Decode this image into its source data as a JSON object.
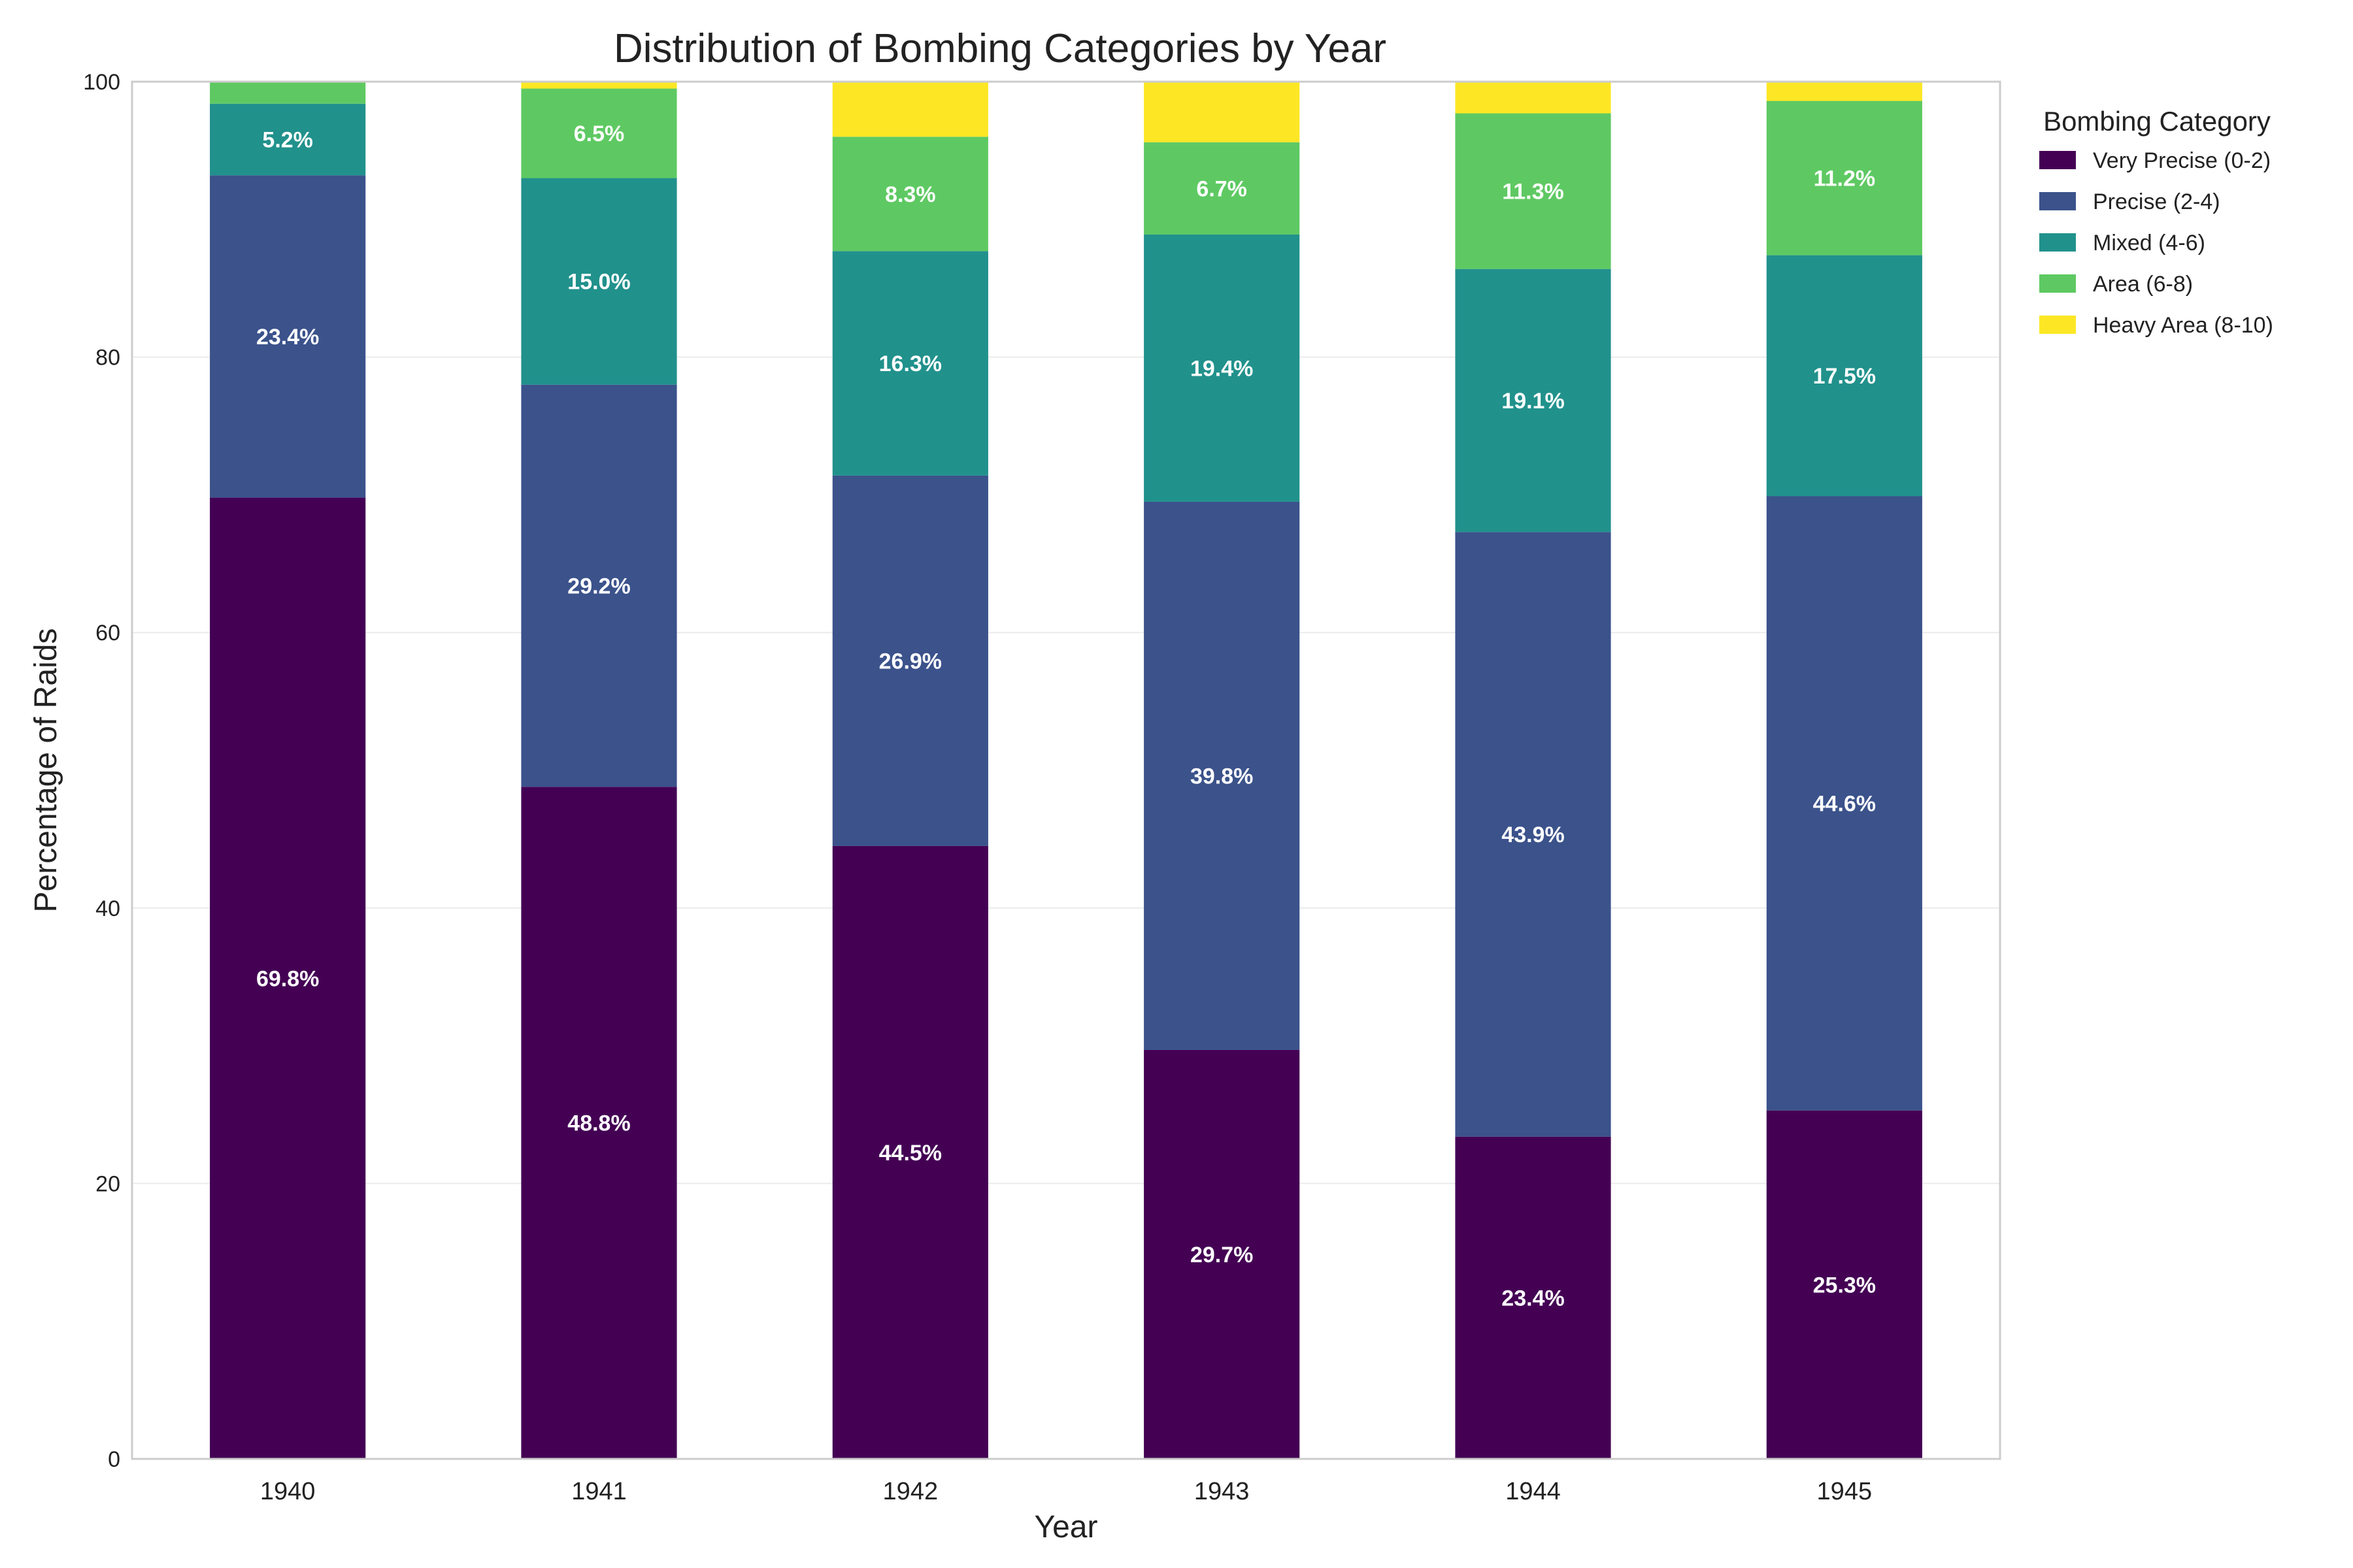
{
  "chart_data": {
    "type": "bar",
    "stacked": true,
    "title": "Distribution of Bombing Categories by Year",
    "xlabel": "Year",
    "ylabel": "Percentage of Raids",
    "ylim": [
      0,
      100
    ],
    "yticks": [
      0,
      20,
      40,
      60,
      80,
      100
    ],
    "grid": true,
    "legend_title": "Bombing Category",
    "legend_position": "outside-right",
    "categories": [
      "1940",
      "1941",
      "1942",
      "1943",
      "1944",
      "1945"
    ],
    "series": [
      {
        "name": "Very Precise (0-2)",
        "color": "#440154",
        "values": [
          69.8,
          48.8,
          44.5,
          29.7,
          23.4,
          25.3
        ]
      },
      {
        "name": "Precise (2-4)",
        "color": "#3b528b",
        "values": [
          23.4,
          29.2,
          26.9,
          39.8,
          43.9,
          44.6
        ]
      },
      {
        "name": "Mixed (4-6)",
        "color": "#21918c",
        "values": [
          5.2,
          15.0,
          16.3,
          19.4,
          19.1,
          17.5
        ]
      },
      {
        "name": "Area (6-8)",
        "color": "#5ec962",
        "values": [
          1.6,
          6.5,
          8.3,
          6.7,
          11.3,
          11.2
        ]
      },
      {
        "name": "Heavy Area (8-10)",
        "color": "#fde725",
        "values": [
          0.0,
          0.5,
          4.0,
          4.4,
          2.3,
          1.4
        ]
      }
    ],
    "label_threshold": 5
  }
}
